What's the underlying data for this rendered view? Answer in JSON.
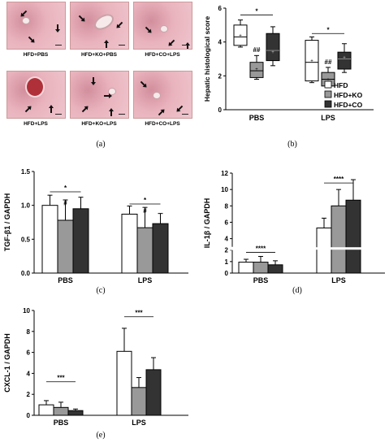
{
  "panels": {
    "a": {
      "label": "(a)",
      "images": [
        {
          "caption": "HFD+PBS"
        },
        {
          "caption": "HFD+KO+PBS"
        },
        {
          "caption": "HFD+CO+LPS"
        },
        {
          "caption": "HFD+LPS"
        },
        {
          "caption": "HFD+KO+LPS"
        },
        {
          "caption": "HFD+CO+LPS"
        }
      ]
    },
    "b": {
      "label": "(b)"
    },
    "c": {
      "label": "(c)"
    },
    "d": {
      "label": "(d)"
    },
    "e": {
      "label": "(e)"
    }
  },
  "colors": {
    "HFD": "#ffffff",
    "HFD+KO": "#999999",
    "HFD+CO": "#333333",
    "tissue": "#e9b3bd",
    "tissue_dark": "#d28e9c"
  },
  "chart_data": [
    {
      "id": "b",
      "type": "box",
      "ylabel": "Hepatic histological score",
      "ylim": [
        0,
        6
      ],
      "yticks": [
        0,
        2,
        4,
        6
      ],
      "categories": [
        "PBS",
        "LPS"
      ],
      "legend": [
        "HFD",
        "HFD+KO",
        "HFD+CO"
      ],
      "legend_position": "right",
      "series": [
        {
          "name": "HFD",
          "boxes": [
            {
              "min": 3.7,
              "q1": 3.8,
              "median": 4.3,
              "q3": 5.0,
              "max": 5.3,
              "mean": 4.4
            },
            {
              "min": 1.6,
              "q1": 1.7,
              "median": 2.8,
              "q3": 4.1,
              "max": 4.3,
              "mean": 2.9
            }
          ]
        },
        {
          "name": "HFD+KO",
          "boxes": [
            {
              "min": 1.8,
              "q1": 1.9,
              "median": 2.3,
              "q3": 2.8,
              "max": 3.2,
              "mean": 2.4
            },
            {
              "min": 1.3,
              "q1": 1.4,
              "median": 1.8,
              "q3": 2.2,
              "max": 2.5,
              "mean": 1.8
            }
          ]
        },
        {
          "name": "HFD+CO",
          "boxes": [
            {
              "min": 2.6,
              "q1": 2.9,
              "median": 3.5,
              "q3": 4.5,
              "max": 4.9,
              "mean": 3.4
            },
            {
              "min": 2.2,
              "q1": 2.4,
              "median": 3.0,
              "q3": 3.4,
              "max": 3.9,
              "mean": 3.1
            }
          ]
        }
      ],
      "annotations": [
        {
          "text": "*",
          "group": 0,
          "from": 0,
          "to": 2,
          "y": 5.6
        },
        {
          "text": "##",
          "group": 0,
          "series": 1,
          "y": 3.4
        },
        {
          "text": "*",
          "group": 1,
          "from": 0,
          "to": 2,
          "y": 4.5
        },
        {
          "text": "##",
          "group": 1,
          "series": 1,
          "y": 2.7
        }
      ]
    },
    {
      "id": "c",
      "type": "bar",
      "ylabel": "TGF-β1 / GAPDH",
      "ylim": [
        0,
        1.5
      ],
      "yticks": [
        0.0,
        0.5,
        1.0,
        1.5
      ],
      "categories": [
        "PBS",
        "LPS"
      ],
      "series": [
        {
          "name": "HFD",
          "values": [
            1.0,
            0.87
          ],
          "errors": [
            0.15,
            0.12
          ]
        },
        {
          "name": "HFD+KO",
          "values": [
            0.78,
            0.67
          ],
          "errors": [
            0.3,
            0.3
          ]
        },
        {
          "name": "HFD+CO",
          "values": [
            0.95,
            0.73
          ],
          "errors": [
            0.17,
            0.15
          ]
        }
      ],
      "annotations": [
        {
          "text": "*",
          "group": 0,
          "from": 0,
          "to": 2,
          "y": 1.2
        },
        {
          "text": "#",
          "group": 0,
          "series": 1,
          "y": 1.0
        },
        {
          "text": "*",
          "group": 1,
          "from": 0,
          "to": 2,
          "y": 1.02
        },
        {
          "text": "#",
          "group": 1,
          "series": 1,
          "y": 0.89
        }
      ]
    },
    {
      "id": "d",
      "type": "bar",
      "ylabel": "IL-1β / GAPDH",
      "axis_break": [
        2,
        3
      ],
      "ylim": [
        0,
        12
      ],
      "yticks": [
        0,
        1,
        2,
        4,
        6,
        8,
        10,
        12
      ],
      "categories": [
        "PBS",
        "LPS"
      ],
      "series": [
        {
          "name": "HFD",
          "values": [
            0.95,
            5.3
          ],
          "errors": [
            0.25,
            1.2
          ]
        },
        {
          "name": "HFD+KO",
          "values": [
            0.95,
            8.0
          ],
          "errors": [
            0.5,
            2.0
          ]
        },
        {
          "name": "HFD+CO",
          "values": [
            0.72,
            8.7
          ],
          "errors": [
            0.35,
            2.5
          ]
        }
      ],
      "annotations": [
        {
          "text": "****",
          "group": 0,
          "from": 0,
          "to": 2,
          "y": 1.8
        },
        {
          "text": "****",
          "group": 1,
          "from": 0,
          "to": 2,
          "y": 10.8
        }
      ]
    },
    {
      "id": "e",
      "type": "bar",
      "ylabel": "CXCL-1 / GAPDH",
      "ylim": [
        0,
        10
      ],
      "yticks": [
        0,
        2,
        4,
        6,
        8,
        10
      ],
      "categories": [
        "PBS",
        "LPS"
      ],
      "series": [
        {
          "name": "HFD",
          "values": [
            1.0,
            6.1
          ],
          "errors": [
            0.4,
            2.2
          ]
        },
        {
          "name": "HFD+KO",
          "values": [
            0.75,
            2.65
          ],
          "errors": [
            0.5,
            0.95
          ]
        },
        {
          "name": "HFD+CO",
          "values": [
            0.45,
            4.35
          ],
          "errors": [
            0.15,
            1.15
          ]
        }
      ],
      "annotations": [
        {
          "text": "***",
          "group": 0,
          "from": 0,
          "to": 2,
          "y": 3.2
        },
        {
          "text": "***",
          "group": 1,
          "from": 0,
          "to": 2,
          "y": 9.4
        }
      ]
    }
  ]
}
